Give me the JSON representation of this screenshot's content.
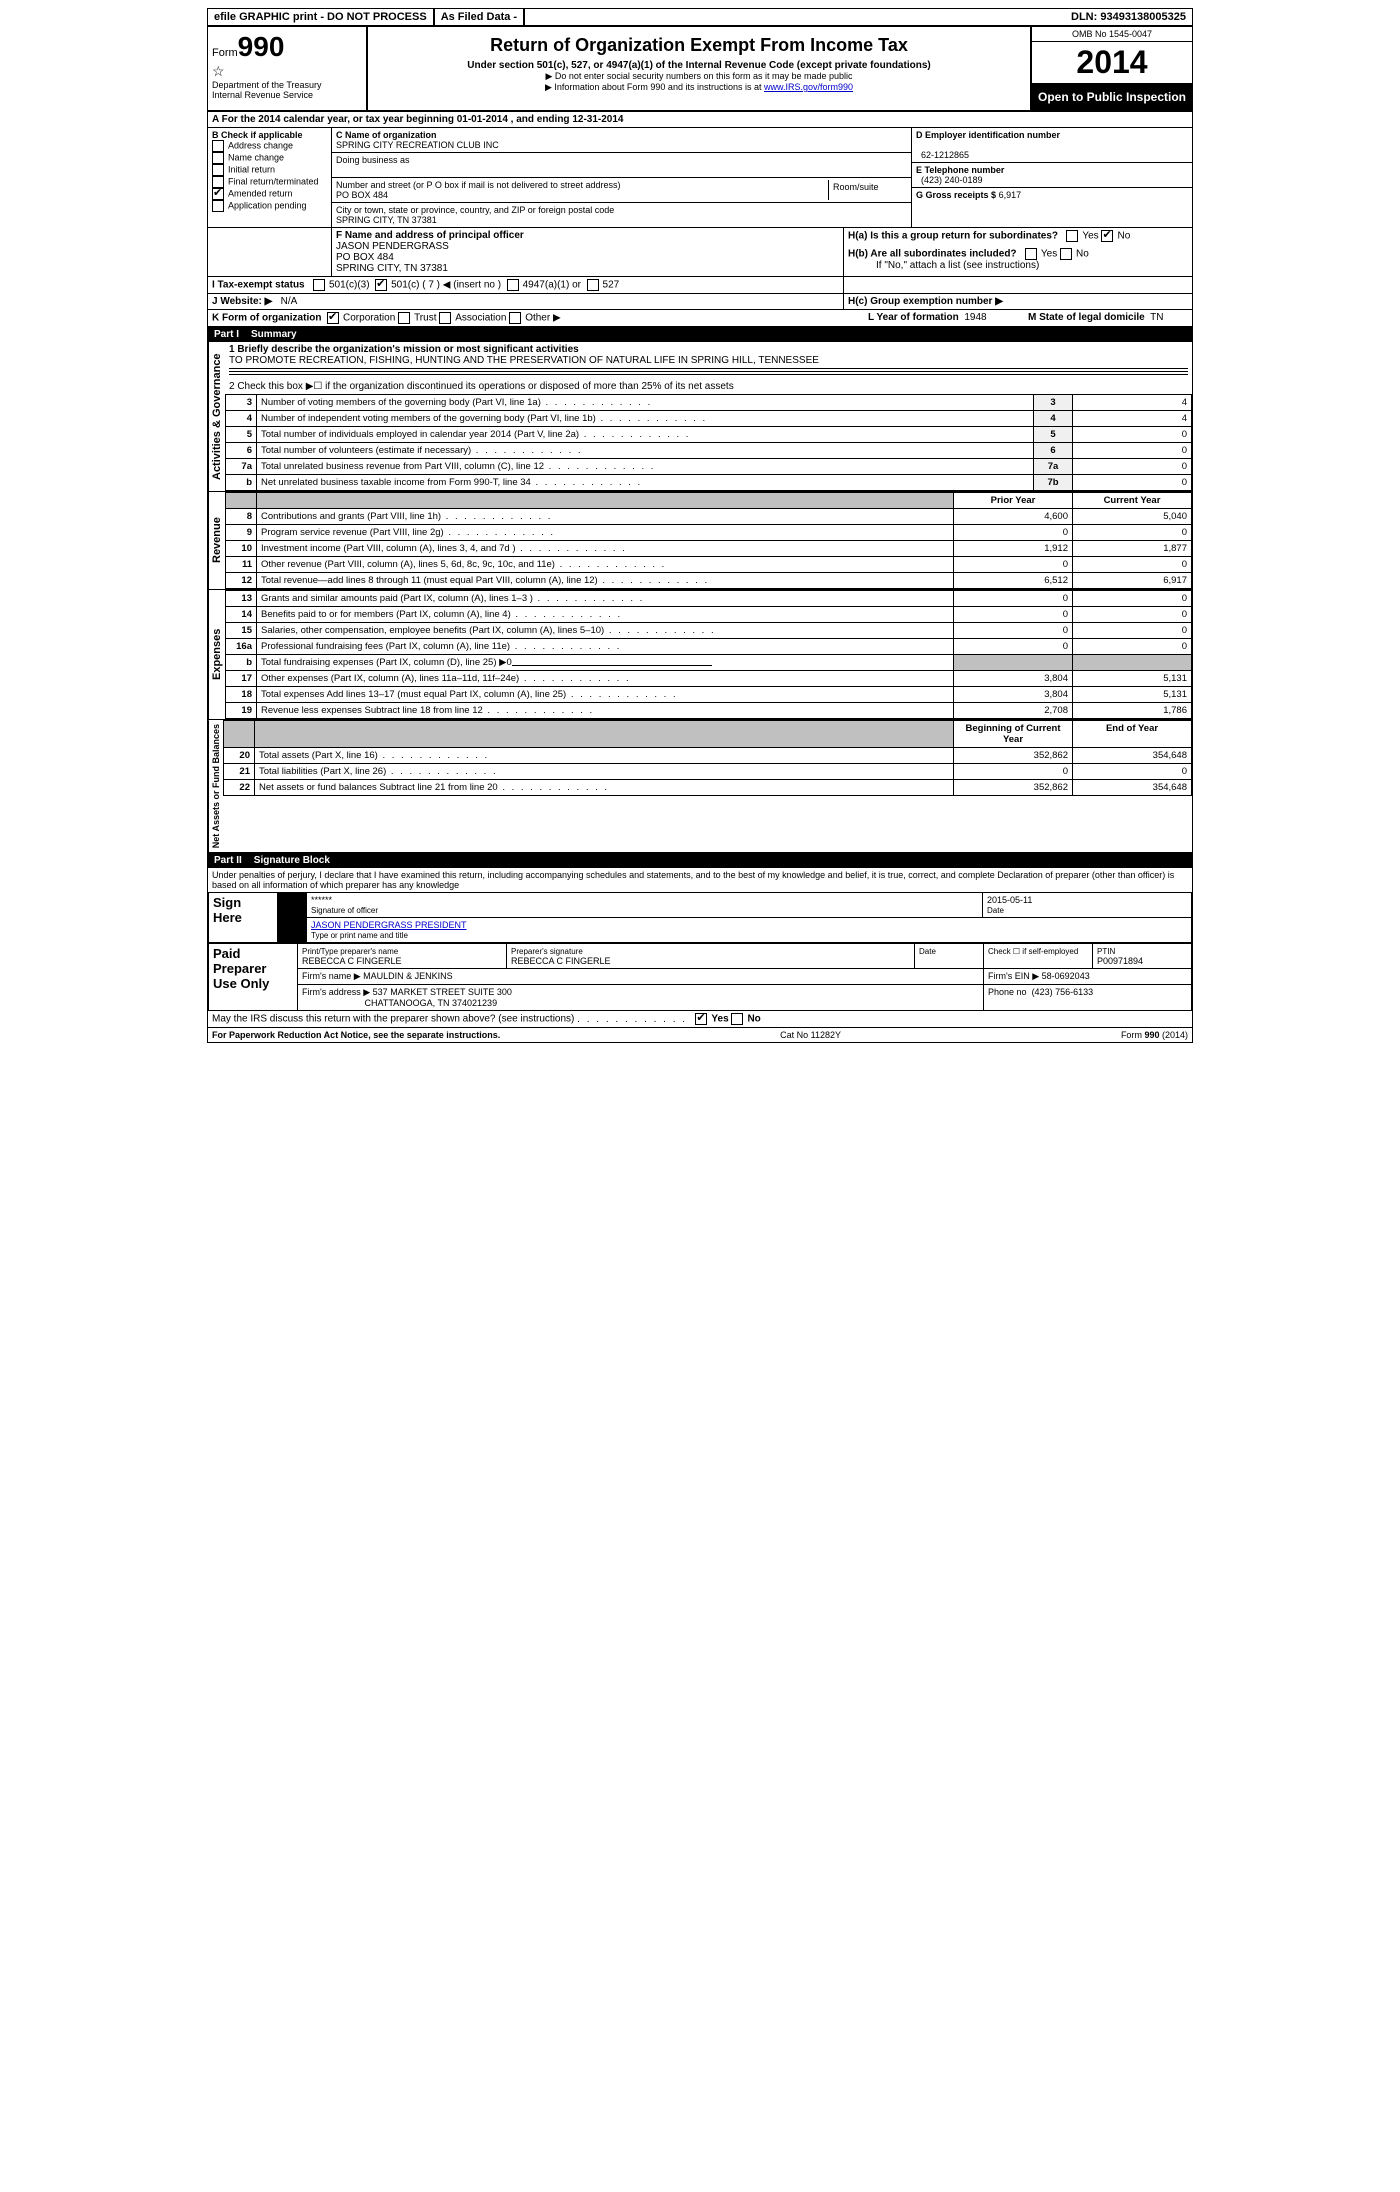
{
  "topbar": {
    "efile": "efile GRAPHIC print - DO NOT PROCESS",
    "asfiled": "As Filed Data -",
    "dln_label": "DLN:",
    "dln": "93493138005325"
  },
  "header": {
    "form_prefix": "Form",
    "form_num": "990",
    "dept1": "Department of the Treasury",
    "dept2": "Internal Revenue Service",
    "title": "Return of Organization Exempt From Income Tax",
    "sub": "Under section 501(c), 527, or 4947(a)(1) of the Internal Revenue Code (except private foundations)",
    "note1": "▶ Do not enter social security numbers on this form as it may be made public",
    "note2_a": "▶ Information about Form 990 and its instructions is at ",
    "note2_link": "www.IRS.gov/form990",
    "omb": "OMB No 1545-0047",
    "year": "2014",
    "inspect": "Open to Public Inspection"
  },
  "a_line": "A For the 2014 calendar year, or tax year beginning 01-01-2014     , and ending 12-31-2014",
  "b": {
    "title": "B Check if applicable",
    "items": [
      "Address change",
      "Name change",
      "Initial return",
      "Final return/terminated",
      "Amended return",
      "Application pending"
    ],
    "checked_index": 4
  },
  "c": {
    "name_label": "C Name of organization",
    "name": "SPRING CITY RECREATION CLUB INC",
    "dba_label": "Doing business as",
    "addr_label": "Number and street (or P O  box if mail is not delivered to street address)",
    "room_label": "Room/suite",
    "addr": "PO BOX 484",
    "city_label": "City or town, state or province, country, and ZIP or foreign postal code",
    "city": "SPRING CITY, TN  37381"
  },
  "d": {
    "label": "D Employer identification number",
    "ein": "62-1212865",
    "e_label": "E Telephone number",
    "phone": "(423) 240-0189",
    "g_label": "G Gross receipts $",
    "gross": "6,917"
  },
  "f": {
    "label": "F   Name and address of principal officer",
    "name": "JASON PENDERGRASS",
    "addr1": "PO BOX 484",
    "addr2": "SPRING CITY, TN  37381"
  },
  "h": {
    "a_label": "H(a)  Is this a group return for subordinates?",
    "b_label": "H(b)  Are all subordinates included?",
    "b_note": "If \"No,\" attach a list  (see instructions)",
    "c_label": "H(c)  Group exemption number ▶",
    "yes": "Yes",
    "no": "No"
  },
  "i": {
    "label": "I   Tax-exempt status",
    "c3": "501(c)(3)",
    "c": "501(c) ( 7 ) ◀ (insert no )",
    "a1": "4947(a)(1) or",
    "527": "527"
  },
  "j": {
    "label": "J  Website: ▶",
    "val": "N/A"
  },
  "k": {
    "label": "K Form of organization",
    "options": [
      "Corporation",
      "Trust",
      "Association",
      "Other ▶"
    ],
    "checked_index": 0,
    "l_label": "L Year of formation",
    "l_val": "1948",
    "m_label": "M State of legal domicile",
    "m_val": "TN"
  },
  "part1": {
    "header": "Part I",
    "title": "Summary",
    "side_gov": "Activities & Governance",
    "side_rev": "Revenue",
    "side_exp": "Expenses",
    "side_net": "Net Assets or Fund Balances",
    "line1_label": "1   Briefly describe the organization's mission or most significant activities",
    "line1_text": "TO PROMOTE RECREATION, FISHING, HUNTING AND THE PRESERVATION OF NATURAL LIFE IN SPRING HILL, TENNESSEE",
    "line2": "2   Check this box ▶☐ if the organization discontinued its operations or disposed of more than 25% of its net assets",
    "rows_gov": [
      {
        "n": "3",
        "d": "Number of voting members of the governing body (Part VI, line 1a)",
        "b": "3",
        "v": "4"
      },
      {
        "n": "4",
        "d": "Number of independent voting members of the governing body (Part VI, line 1b)",
        "b": "4",
        "v": "4"
      },
      {
        "n": "5",
        "d": "Total number of individuals employed in calendar year 2014 (Part V, line 2a)",
        "b": "5",
        "v": "0"
      },
      {
        "n": "6",
        "d": "Total number of volunteers (estimate if necessary)",
        "b": "6",
        "v": "0"
      },
      {
        "n": "7a",
        "d": "Total unrelated business revenue from Part VIII, column (C), line 12",
        "b": "7a",
        "v": "0"
      },
      {
        "n": "b",
        "d": "Net unrelated business taxable income from Form 990-T, line 34",
        "b": "7b",
        "v": "0"
      }
    ],
    "col_prior": "Prior Year",
    "col_current": "Current Year",
    "rows_rev": [
      {
        "n": "8",
        "d": "Contributions and grants (Part VIII, line 1h)",
        "p": "4,600",
        "c": "5,040"
      },
      {
        "n": "9",
        "d": "Program service revenue (Part VIII, line 2g)",
        "p": "0",
        "c": "0"
      },
      {
        "n": "10",
        "d": "Investment income (Part VIII, column (A), lines 3, 4, and 7d )",
        "p": "1,912",
        "c": "1,877"
      },
      {
        "n": "11",
        "d": "Other revenue (Part VIII, column (A), lines 5, 6d, 8c, 9c, 10c, and 11e)",
        "p": "0",
        "c": "0"
      },
      {
        "n": "12",
        "d": "Total revenue—add lines 8 through 11 (must equal Part VIII, column (A), line 12)",
        "p": "6,512",
        "c": "6,917"
      }
    ],
    "rows_exp": [
      {
        "n": "13",
        "d": "Grants and similar amounts paid (Part IX, column (A), lines 1–3 )",
        "p": "0",
        "c": "0"
      },
      {
        "n": "14",
        "d": "Benefits paid to or for members (Part IX, column (A), line 4)",
        "p": "0",
        "c": "0"
      },
      {
        "n": "15",
        "d": "Salaries, other compensation, employee benefits (Part IX, column (A), lines 5–10)",
        "p": "0",
        "c": "0"
      },
      {
        "n": "16a",
        "d": "Professional fundraising fees (Part IX, column (A), line 11e)",
        "p": "0",
        "c": "0"
      },
      {
        "n": "b",
        "d": "Total fundraising expenses (Part IX, column (D), line 25) ▶0",
        "p": "",
        "c": "",
        "grey": true
      },
      {
        "n": "17",
        "d": "Other expenses (Part IX, column (A), lines 11a–11d, 11f–24e)",
        "p": "3,804",
        "c": "5,131"
      },
      {
        "n": "18",
        "d": "Total expenses  Add lines 13–17 (must equal Part IX, column (A), line 25)",
        "p": "3,804",
        "c": "5,131"
      },
      {
        "n": "19",
        "d": "Revenue less expenses  Subtract line 18 from line 12",
        "p": "2,708",
        "c": "1,786"
      }
    ],
    "col_begin": "Beginning of Current Year",
    "col_end": "End of Year",
    "rows_net": [
      {
        "n": "20",
        "d": "Total assets (Part X, line 16)",
        "p": "352,862",
        "c": "354,648"
      },
      {
        "n": "21",
        "d": "Total liabilities (Part X, line 26)",
        "p": "0",
        "c": "0"
      },
      {
        "n": "22",
        "d": "Net assets or fund balances  Subtract line 21 from line 20",
        "p": "352,862",
        "c": "354,648"
      }
    ]
  },
  "part2": {
    "header": "Part II",
    "title": "Signature Block",
    "perjury": "Under penalties of perjury, I declare that I have examined this return, including accompanying schedules and statements, and to the best of my knowledge and belief, it is true, correct, and complete  Declaration of preparer (other than officer) is based on all information of which preparer has any knowledge",
    "sign_here": "Sign Here",
    "sig_stars": "******",
    "sig_of_officer": "Signature of officer",
    "date": "2015-05-11",
    "date_label": "Date",
    "officer_name": "JASON PENDERGRASS PRESIDENT",
    "type_label": "Type or print name and title",
    "paid": "Paid Preparer Use Only",
    "prep_name_label": "Print/Type preparer's name",
    "prep_name": "REBECCA C FINGERLE",
    "prep_sig_label": "Preparer's signature",
    "prep_sig": "REBECCA C FINGERLE",
    "prep_date_label": "Date",
    "self_emp": "Check ☐ if self-employed",
    "ptin_label": "PTIN",
    "ptin": "P00971894",
    "firm_name_label": "Firm's name      ▶",
    "firm_name": "MAULDIN & JENKINS",
    "firm_ein_label": "Firm's EIN ▶",
    "firm_ein": "58-0692043",
    "firm_addr_label": "Firm's address ▶",
    "firm_addr1": "537 MARKET STREET SUITE 300",
    "firm_addr2": "CHATTANOOGA, TN  374021239",
    "firm_phone_label": "Phone no",
    "firm_phone": "(423) 756-6133",
    "discuss": "May the IRS discuss this return with the preparer shown above? (see instructions)",
    "discuss_yes": "Yes",
    "discuss_no": "No"
  },
  "footer": {
    "paperwork": "For Paperwork Reduction Act Notice, see the separate instructions.",
    "cat": "Cat No 11282Y",
    "form": "Form 990 (2014)"
  }
}
